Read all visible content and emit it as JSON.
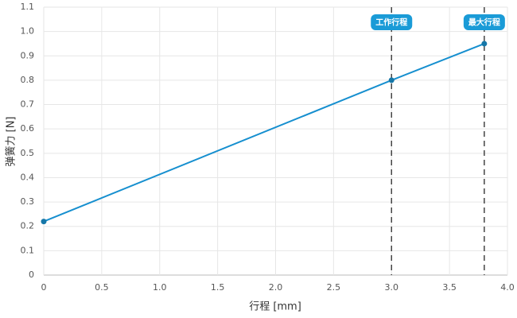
{
  "chart_data": {
    "type": "line",
    "x": [
      0,
      3.0,
      3.8
    ],
    "values": [
      0.22,
      0.8,
      0.95
    ],
    "color": "#168fcf",
    "xlabel": "行程 [mm]",
    "ylabel": "弹簧力 [N]",
    "xlim": [
      0,
      4
    ],
    "ylim": [
      0,
      1.1
    ],
    "xticks": [
      0,
      0.5,
      {
        "value": 1,
        "label": "1.0"
      },
      1.5,
      {
        "value": 2,
        "label": "2.0"
      },
      2.5,
      {
        "value": 3,
        "label": "3.0"
      },
      3.5,
      {
        "value": 4,
        "label": "4.0"
      }
    ],
    "yticks": [
      0,
      0.1,
      0.2,
      0.3,
      0.4,
      0.5,
      0.6,
      0.7,
      0.8,
      0.9,
      {
        "value": 1,
        "label": "1.0"
      },
      1.1
    ],
    "grid": true,
    "annotations": [
      {
        "x": 3.0,
        "label": "工作行程"
      },
      {
        "x": 3.8,
        "label": "最大行程"
      }
    ]
  }
}
